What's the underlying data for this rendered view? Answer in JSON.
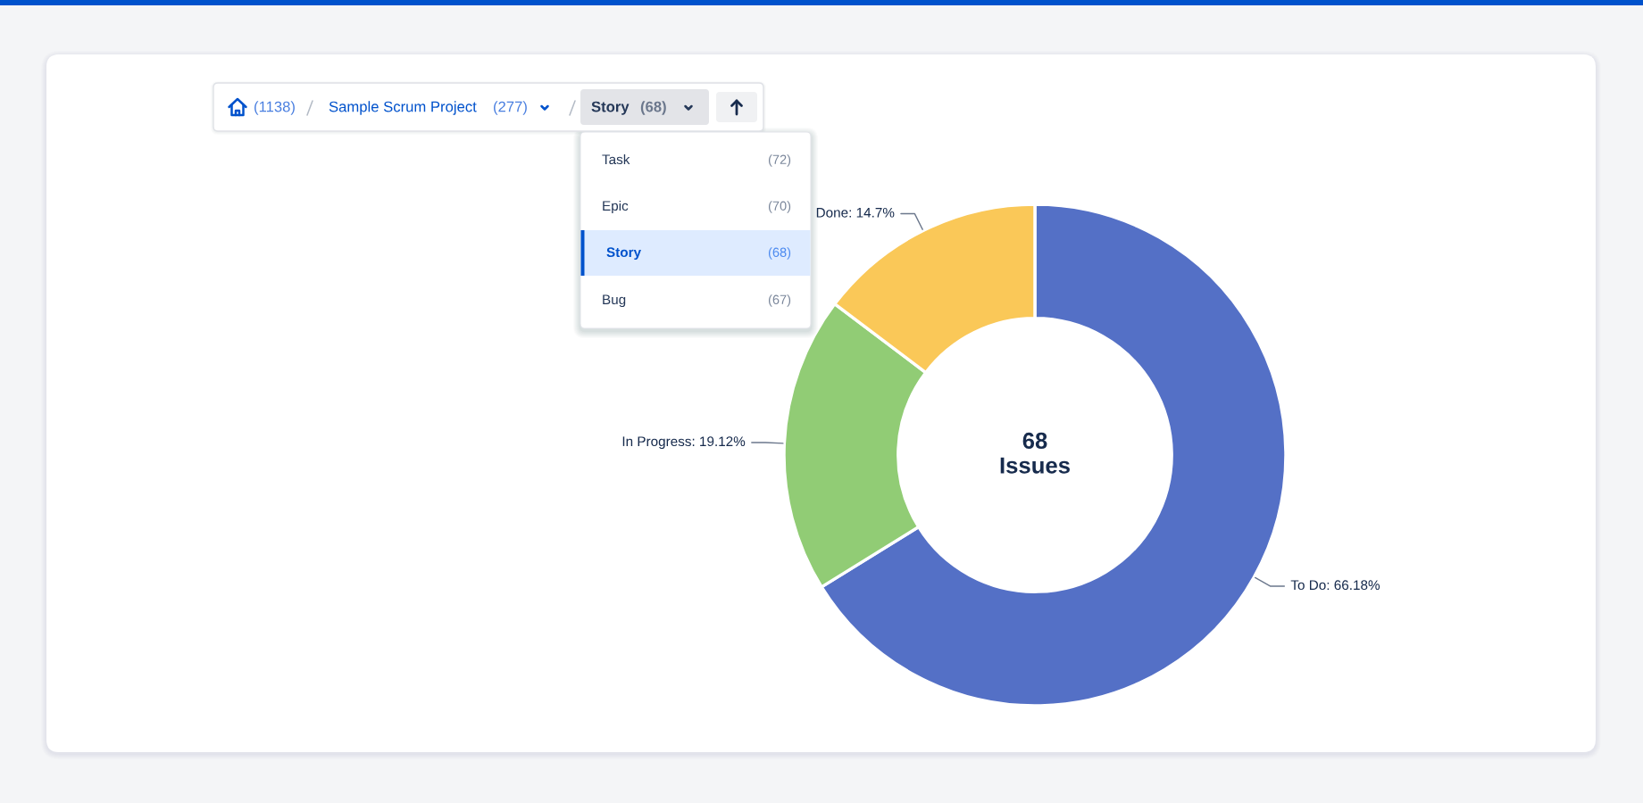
{
  "chart_data": {
    "type": "donut",
    "categories": [
      "To Do",
      "In Progress",
      "Done"
    ],
    "values": [
      66.18,
      19.12,
      14.7
    ],
    "colors": [
      "#5470c6",
      "#91cc75",
      "#fac858"
    ],
    "value_labels": [
      "66.18%",
      "19.12%",
      "14.7%"
    ],
    "annotations": [
      "68\nIssues",
      "(1138)",
      "Sample Scrum Project",
      "(277)",
      "Story",
      "(68)",
      "Task",
      "(72)",
      "Epic",
      "(70)",
      "Story",
      "(68)",
      "Bug",
      "(67)"
    ]
  }
}
